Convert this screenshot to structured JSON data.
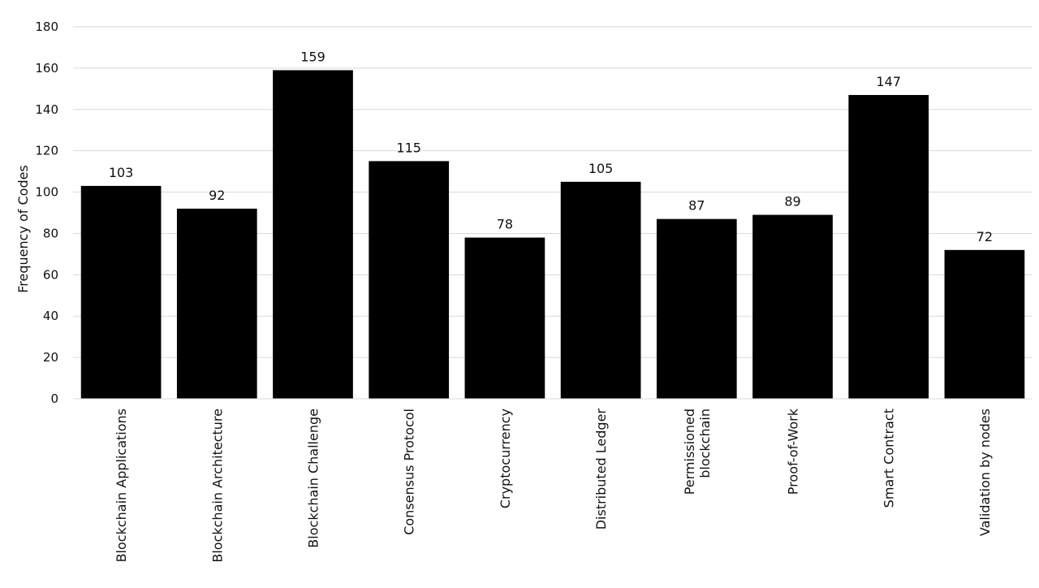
{
  "chart_data": {
    "type": "bar",
    "title": "",
    "xlabel": "",
    "ylabel": "Frequency of Codes",
    "ylim": [
      0,
      180
    ],
    "yticks": [
      0,
      20,
      40,
      60,
      80,
      100,
      120,
      140,
      160,
      180
    ],
    "grid": true,
    "legend": "none",
    "bar_color": "#000000",
    "grid_color": "#d9d9d9",
    "categories": [
      [
        "Blockchain Applications"
      ],
      [
        "Blockchain Architecture"
      ],
      [
        "Blockchain Challenge"
      ],
      [
        "Consensus Protocol"
      ],
      [
        "Cryptocurrency"
      ],
      [
        "Distributed Ledger"
      ],
      [
        "Permissioned",
        "blockchain"
      ],
      [
        "Proof-of-Work"
      ],
      [
        "Smart Contract"
      ],
      [
        "Validation by nodes"
      ]
    ],
    "values": [
      103,
      92,
      159,
      115,
      78,
      105,
      87,
      89,
      147,
      72
    ]
  }
}
